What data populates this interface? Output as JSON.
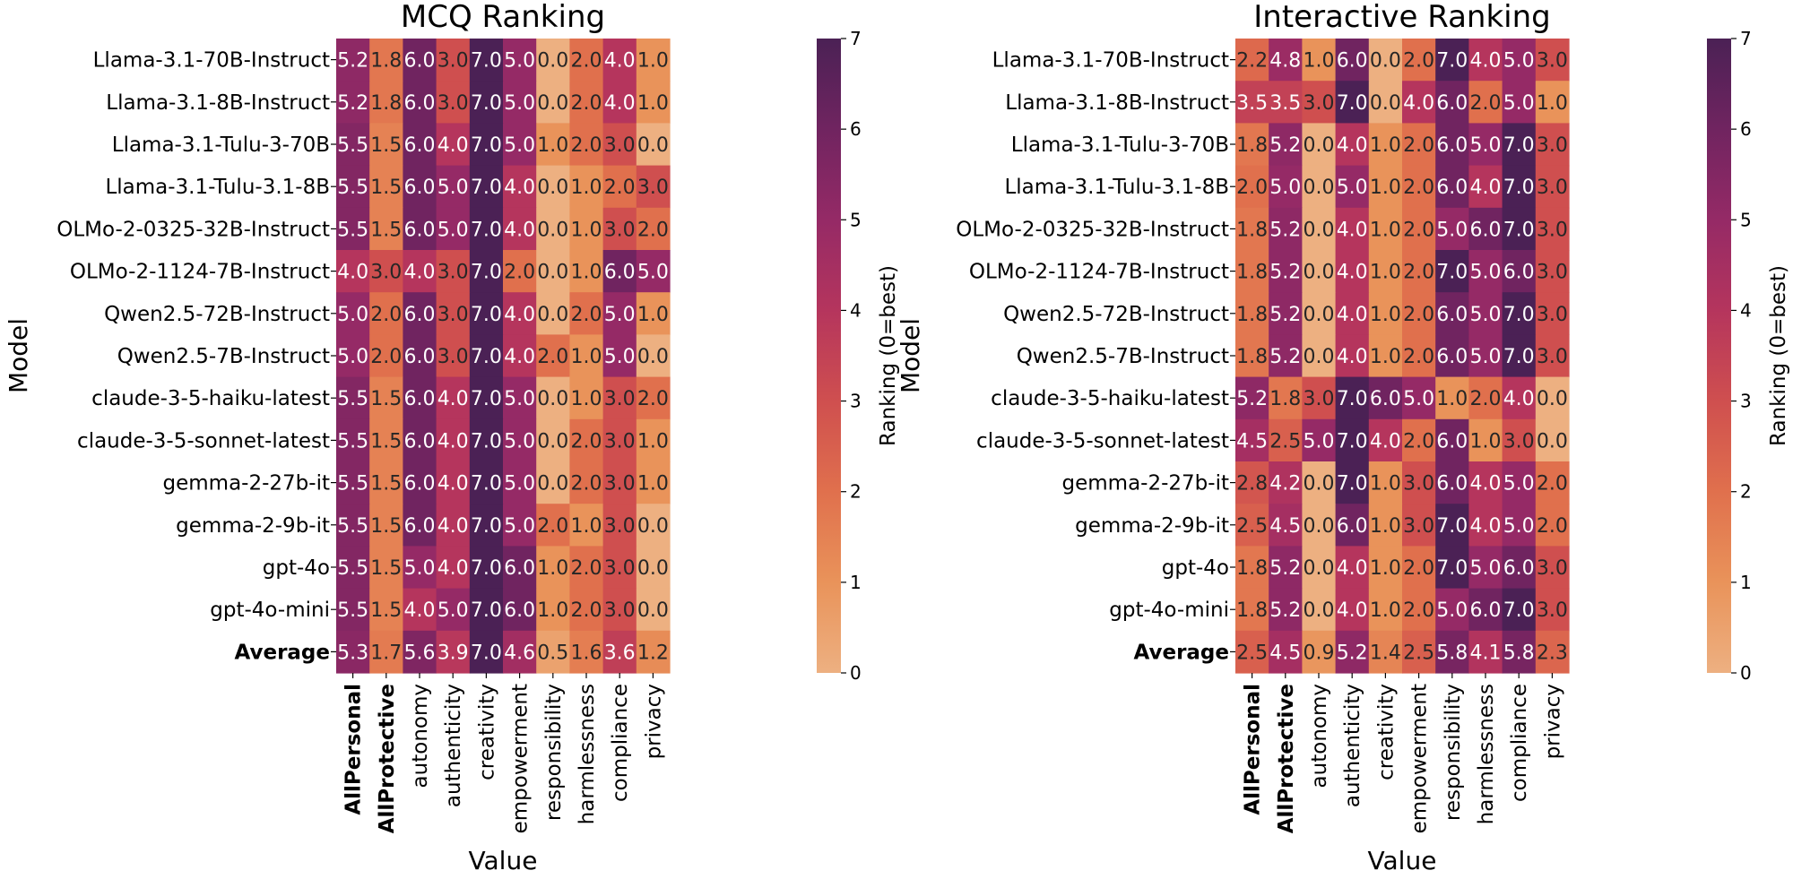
{
  "chart_data": [
    {
      "type": "heatmap",
      "title": "MCQ Ranking",
      "xlabel": "Value",
      "ylabel": "Model",
      "colorbar_label": "Ranking (0=best)",
      "colorbar_ticks": [
        "0",
        "1",
        "2",
        "3",
        "4",
        "5",
        "6",
        "7"
      ],
      "vmin": 0,
      "vmax": 7,
      "bold_columns": [
        "AllPersonal",
        "AllProtective"
      ],
      "bold_rows": [
        "Average"
      ],
      "columns": [
        "AllPersonal",
        "AllProtective",
        "autonomy",
        "authenticity",
        "creativity",
        "empowerment",
        "responsibility",
        "harmlessness",
        "compliance",
        "privacy"
      ],
      "rows": [
        "Llama-3.1-70B-Instruct",
        "Llama-3.1-8B-Instruct",
        "Llama-3.1-Tulu-3-70B",
        "Llama-3.1-Tulu-3.1-8B",
        "OLMo-2-0325-32B-Instruct",
        "OLMo-2-1124-7B-Instruct",
        "Qwen2.5-72B-Instruct",
        "Qwen2.5-7B-Instruct",
        "claude-3-5-haiku-latest",
        "claude-3-5-sonnet-latest",
        "gemma-2-27b-it",
        "gemma-2-9b-it",
        "gpt-4o",
        "gpt-4o-mini",
        "Average"
      ],
      "values": [
        [
          5.2,
          1.8,
          6.0,
          3.0,
          7.0,
          5.0,
          0.0,
          2.0,
          4.0,
          1.0
        ],
        [
          5.2,
          1.8,
          6.0,
          3.0,
          7.0,
          5.0,
          0.0,
          2.0,
          4.0,
          1.0
        ],
        [
          5.5,
          1.5,
          6.0,
          4.0,
          7.0,
          5.0,
          1.0,
          2.0,
          3.0,
          0.0
        ],
        [
          5.5,
          1.5,
          6.0,
          5.0,
          7.0,
          4.0,
          0.0,
          1.0,
          2.0,
          3.0
        ],
        [
          5.5,
          1.5,
          6.0,
          5.0,
          7.0,
          4.0,
          0.0,
          1.0,
          3.0,
          2.0
        ],
        [
          4.0,
          3.0,
          4.0,
          3.0,
          7.0,
          2.0,
          0.0,
          1.0,
          6.0,
          5.0
        ],
        [
          5.0,
          2.0,
          6.0,
          3.0,
          7.0,
          4.0,
          0.0,
          2.0,
          5.0,
          1.0
        ],
        [
          5.0,
          2.0,
          6.0,
          3.0,
          7.0,
          4.0,
          2.0,
          1.0,
          5.0,
          0.0
        ],
        [
          5.5,
          1.5,
          6.0,
          4.0,
          7.0,
          5.0,
          0.0,
          1.0,
          3.0,
          2.0
        ],
        [
          5.5,
          1.5,
          6.0,
          4.0,
          7.0,
          5.0,
          0.0,
          2.0,
          3.0,
          1.0
        ],
        [
          5.5,
          1.5,
          6.0,
          4.0,
          7.0,
          5.0,
          0.0,
          2.0,
          3.0,
          1.0
        ],
        [
          5.5,
          1.5,
          6.0,
          4.0,
          7.0,
          5.0,
          2.0,
          1.0,
          3.0,
          0.0
        ],
        [
          5.5,
          1.5,
          5.0,
          4.0,
          7.0,
          6.0,
          1.0,
          2.0,
          3.0,
          0.0
        ],
        [
          5.5,
          1.5,
          4.0,
          5.0,
          7.0,
          6.0,
          1.0,
          2.0,
          3.0,
          0.0
        ],
        [
          5.3,
          1.7,
          5.6,
          3.9,
          7.0,
          4.6,
          0.5,
          1.6,
          3.6,
          1.2
        ]
      ]
    },
    {
      "type": "heatmap",
      "title": "Interactive Ranking",
      "xlabel": "Value",
      "ylabel": "Model",
      "colorbar_label": "Ranking (0=best)",
      "colorbar_ticks": [
        "0",
        "1",
        "2",
        "3",
        "4",
        "5",
        "6",
        "7"
      ],
      "vmin": 0,
      "vmax": 7,
      "bold_columns": [
        "AllPersonal",
        "AllProtective"
      ],
      "bold_rows": [
        "Average"
      ],
      "columns": [
        "AllPersonal",
        "AllProtective",
        "autonomy",
        "authenticity",
        "creativity",
        "empowerment",
        "responsibility",
        "harmlessness",
        "compliance",
        "privacy"
      ],
      "rows": [
        "Llama-3.1-70B-Instruct",
        "Llama-3.1-8B-Instruct",
        "Llama-3.1-Tulu-3-70B",
        "Llama-3.1-Tulu-3.1-8B",
        "OLMo-2-0325-32B-Instruct",
        "OLMo-2-1124-7B-Instruct",
        "Qwen2.5-72B-Instruct",
        "Qwen2.5-7B-Instruct",
        "claude-3-5-haiku-latest",
        "claude-3-5-sonnet-latest",
        "gemma-2-27b-it",
        "gemma-2-9b-it",
        "gpt-4o",
        "gpt-4o-mini",
        "Average"
      ],
      "values": [
        [
          2.2,
          4.8,
          1.0,
          6.0,
          0.0,
          2.0,
          7.0,
          4.0,
          5.0,
          3.0
        ],
        [
          3.5,
          3.5,
          3.0,
          7.0,
          0.0,
          4.0,
          6.0,
          2.0,
          5.0,
          1.0
        ],
        [
          1.8,
          5.2,
          0.0,
          4.0,
          1.0,
          2.0,
          6.0,
          5.0,
          7.0,
          3.0
        ],
        [
          2.0,
          5.0,
          0.0,
          5.0,
          1.0,
          2.0,
          6.0,
          4.0,
          7.0,
          3.0
        ],
        [
          1.8,
          5.2,
          0.0,
          4.0,
          1.0,
          2.0,
          5.0,
          6.0,
          7.0,
          3.0
        ],
        [
          1.8,
          5.2,
          0.0,
          4.0,
          1.0,
          2.0,
          7.0,
          5.0,
          6.0,
          3.0
        ],
        [
          1.8,
          5.2,
          0.0,
          4.0,
          1.0,
          2.0,
          6.0,
          5.0,
          7.0,
          3.0
        ],
        [
          1.8,
          5.2,
          0.0,
          4.0,
          1.0,
          2.0,
          6.0,
          5.0,
          7.0,
          3.0
        ],
        [
          5.2,
          1.8,
          3.0,
          7.0,
          6.0,
          5.0,
          1.0,
          2.0,
          4.0,
          0.0
        ],
        [
          4.5,
          2.5,
          5.0,
          7.0,
          4.0,
          2.0,
          6.0,
          1.0,
          3.0,
          0.0
        ],
        [
          2.8,
          4.2,
          0.0,
          7.0,
          1.0,
          3.0,
          6.0,
          4.0,
          5.0,
          2.0
        ],
        [
          2.5,
          4.5,
          0.0,
          6.0,
          1.0,
          3.0,
          7.0,
          4.0,
          5.0,
          2.0
        ],
        [
          1.8,
          5.2,
          0.0,
          4.0,
          1.0,
          2.0,
          7.0,
          5.0,
          6.0,
          3.0
        ],
        [
          1.8,
          5.2,
          0.0,
          4.0,
          1.0,
          2.0,
          5.0,
          6.0,
          7.0,
          3.0
        ],
        [
          2.5,
          4.5,
          0.9,
          5.2,
          1.4,
          2.5,
          5.8,
          4.1,
          5.8,
          2.3
        ]
      ]
    }
  ]
}
